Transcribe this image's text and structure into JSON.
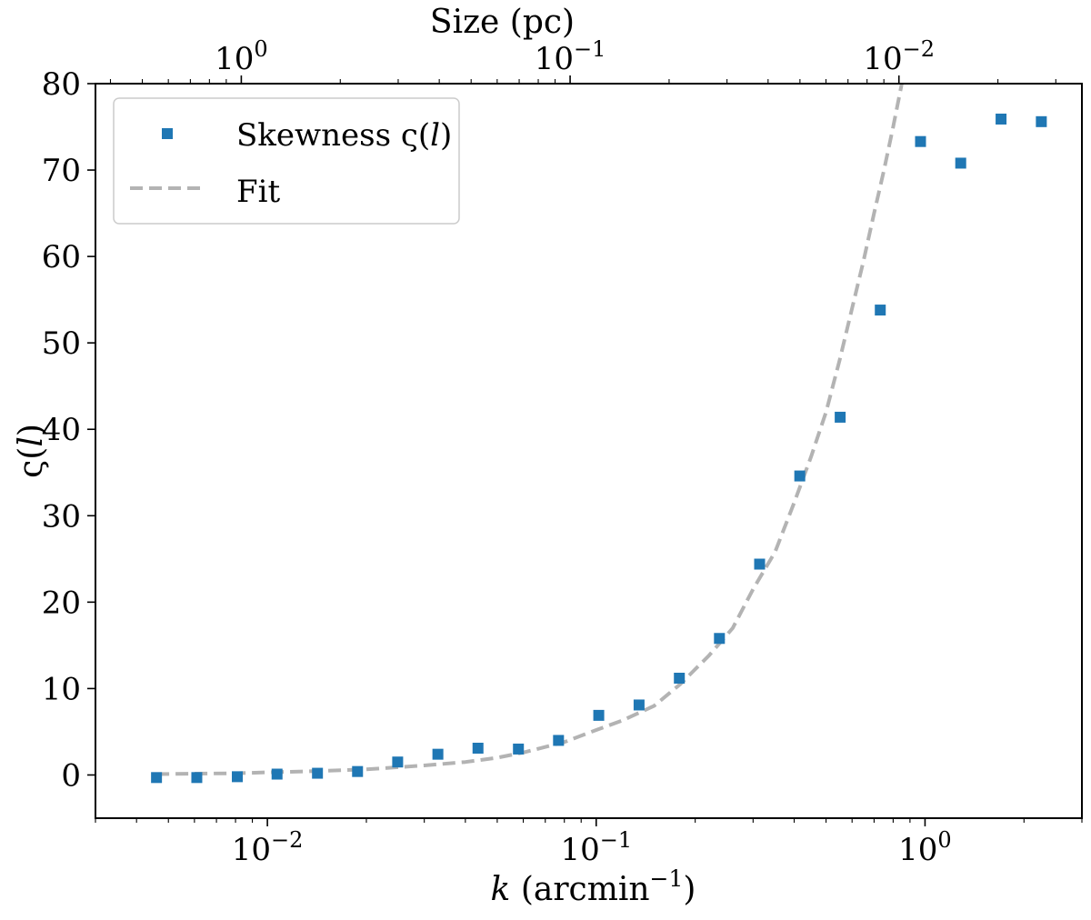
{
  "chart_data": {
    "type": "scatter",
    "x_scale": "log",
    "x_range": [
      0.003,
      3.0
    ],
    "y_range": [
      -5,
      80
    ],
    "xlabel_main": "k",
    "xlabel_unit": " (arcmin",
    "xlabel_exp": "−1",
    "xlabel_close": ")",
    "ylabel_base": "ς(",
    "ylabel_var": "l",
    "ylabel_close": ")",
    "top_axis_label": "Size (pc)",
    "y_ticks": [
      0,
      10,
      20,
      30,
      40,
      50,
      60,
      70,
      80
    ],
    "x_ticks": [
      {
        "value": 0.01,
        "base": "10",
        "exp": "−2"
      },
      {
        "value": 0.1,
        "base": "10",
        "exp": "−1"
      },
      {
        "value": 1.0,
        "base": "10",
        "exp": "0"
      }
    ],
    "top_ticks": [
      {
        "k_value": 0.00833,
        "base": "10",
        "exp": "0"
      },
      {
        "k_value": 0.0833,
        "base": "10",
        "exp": "−1"
      },
      {
        "k_value": 0.833,
        "base": "10",
        "exp": "−2"
      }
    ],
    "legend": {
      "position": "upper-left",
      "items": [
        {
          "label_prefix": "Skewness ς(",
          "label_var": "l",
          "label_suffix": ")",
          "kind": "marker"
        },
        {
          "label_prefix": "Fit",
          "label_var": "",
          "label_suffix": "",
          "kind": "line"
        }
      ]
    },
    "series": [
      {
        "name": "Skewness ς(l)",
        "kind": "scatter",
        "color": "#1f77b4",
        "x": [
          0.0046,
          0.0061,
          0.0081,
          0.0107,
          0.0142,
          0.0188,
          0.0249,
          0.033,
          0.0437,
          0.058,
          0.0768,
          0.1018,
          0.135,
          0.179,
          0.237,
          0.314,
          0.416,
          0.552,
          0.731,
          0.969,
          1.284,
          1.703,
          2.258
        ],
        "y": [
          -0.3,
          -0.3,
          -0.2,
          0.1,
          0.2,
          0.4,
          1.5,
          2.4,
          3.1,
          3.0,
          4.0,
          6.9,
          8.1,
          11.2,
          15.8,
          24.4,
          34.6,
          41.4,
          53.8,
          73.3,
          70.8,
          75.9,
          75.6
        ]
      },
      {
        "name": "Fit",
        "kind": "line",
        "color": "#b3b3b3",
        "dash": true,
        "x": [
          0.0046,
          0.006,
          0.008,
          0.01,
          0.014,
          0.02,
          0.03,
          0.04,
          0.05,
          0.06,
          0.08,
          0.1,
          0.12,
          0.15,
          0.18,
          0.22,
          0.26,
          0.3,
          0.35,
          0.4,
          0.45,
          0.5,
          0.55,
          0.6,
          0.65,
          0.7,
          0.75,
          0.8,
          0.85
        ],
        "y": [
          0.1,
          0.15,
          0.2,
          0.3,
          0.45,
          0.65,
          1.1,
          1.5,
          2.0,
          2.6,
          3.8,
          5.2,
          6.3,
          8.0,
          10.5,
          13.8,
          17.0,
          21.5,
          25.8,
          31.5,
          36.8,
          42.0,
          48.0,
          54.0,
          59.5,
          65.0,
          70.0,
          75.0,
          80.0
        ]
      }
    ]
  }
}
